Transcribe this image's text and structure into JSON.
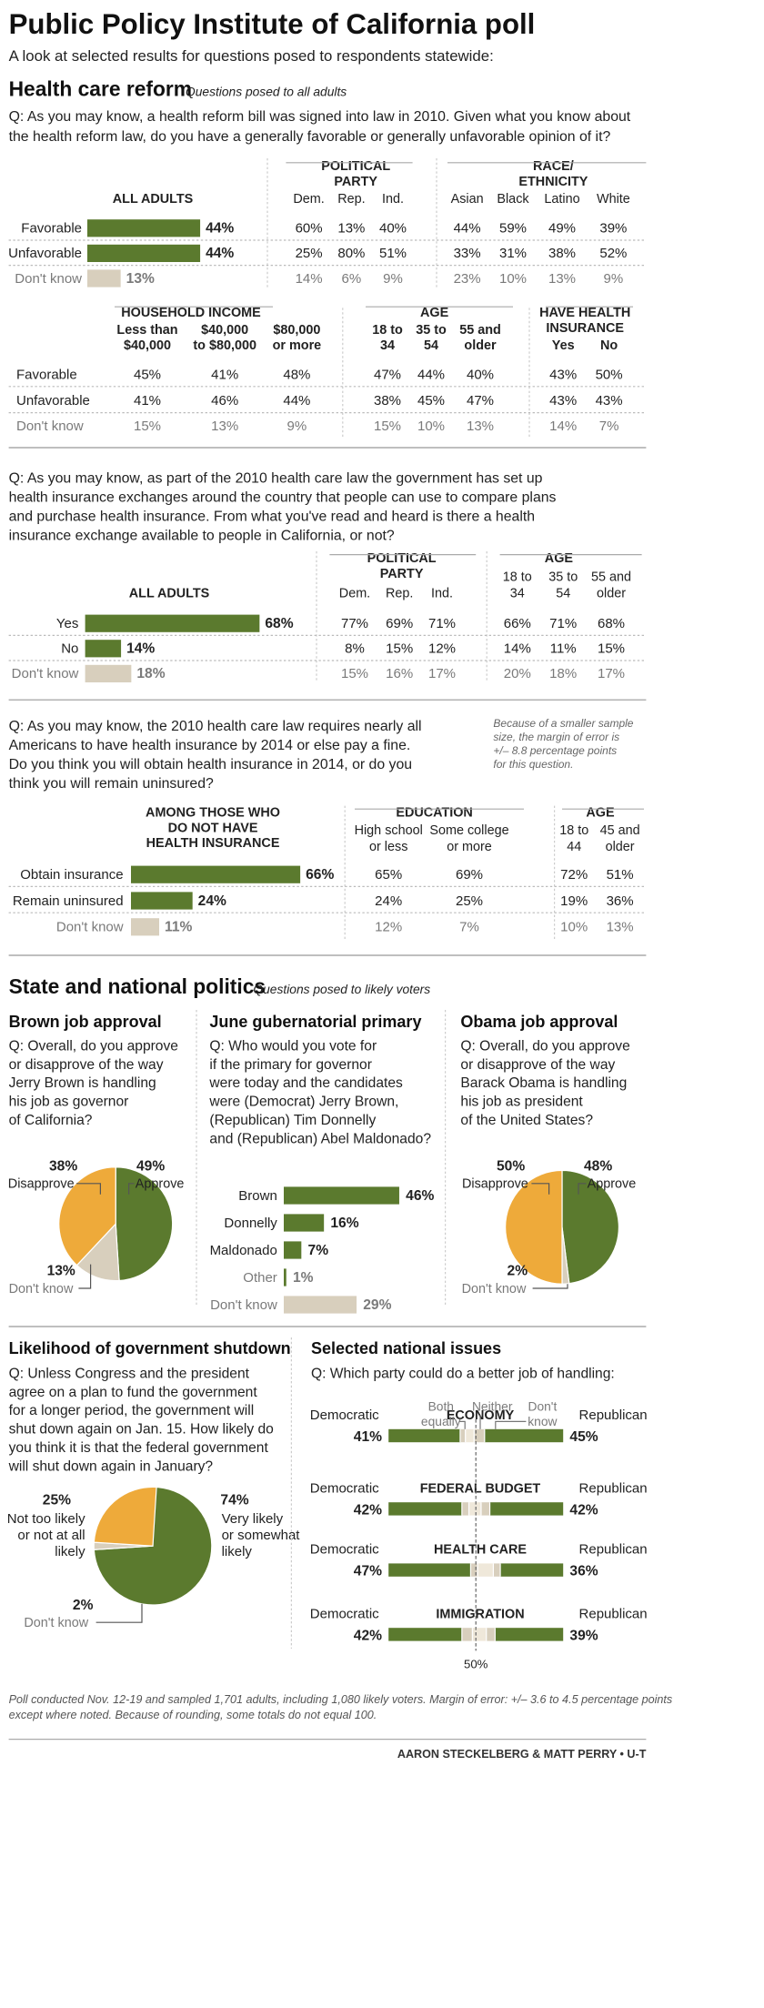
{
  "title": "Public Policy Institute of California poll",
  "subtitle": "A look at selected results for questions posed to respondents statewide:",
  "colors": {
    "green": "#5b7a2e",
    "gold": "#eeaa3a",
    "beige": "#d8cfbd",
    "grey": "#7a7a7a",
    "rule": "#c8c8c8"
  },
  "sections": {
    "health": {
      "title": "Health care reform",
      "note": "Questions posed to all adults"
    },
    "politics": {
      "title": "State and national politics",
      "note": "Questions posed to likely voters"
    }
  },
  "q1": {
    "question_lines": [
      "Q: As you may know, a health reform bill was signed into law in 2010. Given what you know about",
      "the health reform law, do you have a generally favorable or generally unfavorable opinion of it?"
    ],
    "all_adults_label": "ALL ADULTS",
    "group_headers": {
      "party": [
        "POLITICAL",
        "PARTY"
      ],
      "race": [
        "RACE/",
        "ETHNICITY"
      ]
    },
    "party_cols": [
      "Dem.",
      "Rep.",
      "Ind."
    ],
    "race_cols": [
      "Asian",
      "Black",
      "Latino",
      "White"
    ],
    "rows": [
      "Favorable",
      "Unfavorable",
      "Don't know"
    ],
    "party_values": [
      [
        "60%",
        "13%",
        "40%"
      ],
      [
        "25%",
        "80%",
        "51%"
      ],
      [
        "14%",
        "6%",
        "9%"
      ]
    ],
    "race_values": [
      [
        "44%",
        "59%",
        "49%",
        "39%"
      ],
      [
        "33%",
        "31%",
        "38%",
        "52%"
      ],
      [
        "23%",
        "10%",
        "13%",
        "9%"
      ]
    ],
    "income_header": "HOUSEHOLD INCOME",
    "income_cols": [
      [
        "Less than",
        "$40,000"
      ],
      [
        "$40,000",
        "to $80,000"
      ],
      [
        "$80,000",
        "or more"
      ]
    ],
    "income_values": [
      [
        "45%",
        "41%",
        "48%"
      ],
      [
        "41%",
        "46%",
        "44%"
      ],
      [
        "15%",
        "13%",
        "9%"
      ]
    ],
    "age_header": "AGE",
    "age_cols": [
      [
        "18 to",
        "34"
      ],
      [
        "35 to",
        "54"
      ],
      [
        "55 and",
        "older"
      ]
    ],
    "age_values": [
      [
        "47%",
        "44%",
        "40%"
      ],
      [
        "38%",
        "45%",
        "47%"
      ],
      [
        "15%",
        "10%",
        "13%"
      ]
    ],
    "ins_header": [
      "HAVE HEALTH",
      "INSURANCE"
    ],
    "ins_cols": [
      "Yes",
      "No"
    ],
    "ins_values": [
      [
        "43%",
        "50%"
      ],
      [
        "43%",
        "43%"
      ],
      [
        "14%",
        "7%"
      ]
    ]
  },
  "q2": {
    "question_lines": [
      "Q: As you may know, as part of the 2010 health care law the government has set up",
      "health insurance exchanges around the country that people can use to compare plans",
      "and purchase health insurance. From what you've read and heard is there a health",
      "insurance exchange available to people in California, or not?"
    ],
    "all_adults_label": "ALL ADULTS",
    "party_header": [
      "POLITICAL",
      "PARTY"
    ],
    "party_cols": [
      "Dem.",
      "Rep.",
      "Ind."
    ],
    "age_header": "AGE",
    "age_cols": [
      [
        "18 to",
        "34"
      ],
      [
        "35 to",
        "54"
      ],
      [
        "55 and",
        "older"
      ]
    ],
    "rows": [
      "Yes",
      "No",
      "Don't know"
    ],
    "party_values": [
      [
        "77%",
        "69%",
        "71%"
      ],
      [
        "8%",
        "15%",
        "12%"
      ],
      [
        "15%",
        "16%",
        "17%"
      ]
    ],
    "age_values": [
      [
        "66%",
        "71%",
        "68%"
      ],
      [
        "14%",
        "11%",
        "15%"
      ],
      [
        "20%",
        "18%",
        "17%"
      ]
    ]
  },
  "q3": {
    "question_lines": [
      "Q: As you may know, the 2010 health care law requires nearly all",
      "Americans to have health insurance by 2014 or else pay a fine.",
      "Do you think you will obtain health insurance in 2014, or do you",
      "think you will remain uninsured?"
    ],
    "note_lines": [
      "Because of a smaller sample",
      "size, the margin of error is",
      "+/– 8.8 percentage points",
      "for this question."
    ],
    "among_header": [
      "AMONG THOSE WHO",
      "DO NOT HAVE",
      "HEALTH INSURANCE"
    ],
    "edu_header": "EDUCATION",
    "edu_cols": [
      [
        "High school",
        "or less"
      ],
      [
        "Some college",
        "or more"
      ]
    ],
    "age_header": "AGE",
    "age_cols": [
      [
        "18 to",
        "44"
      ],
      [
        "45 and",
        "older"
      ]
    ],
    "rows": [
      "Obtain insurance",
      "Remain uninsured",
      "Don't know"
    ],
    "edu_values": [
      [
        "65%",
        "69%"
      ],
      [
        "24%",
        "25%"
      ],
      [
        "12%",
        "7%"
      ]
    ],
    "age_values": [
      [
        "72%",
        "51%"
      ],
      [
        "19%",
        "36%"
      ],
      [
        "10%",
        "13%"
      ]
    ]
  },
  "brown": {
    "title": "Brown job approval",
    "question_lines": [
      "Q: Overall, do you approve",
      "or disapprove of the way",
      "Jerry Brown is handling",
      "his job as governor",
      "of California?"
    ],
    "labels": {
      "disapprove_pct": "38%",
      "disapprove": "Disapprove",
      "approve_pct": "49%",
      "approve": "Approve",
      "dk_pct": "13%",
      "dk": "Don't know"
    }
  },
  "primary": {
    "title": "June gubernatorial primary",
    "question_lines": [
      "Q: Who would you vote for",
      "if the primary for governor",
      "were today and the candidates",
      "were (Democrat) Jerry Brown,",
      "(Republican) Tim Donnelly",
      "and (Republican) Abel Maldonado?"
    ]
  },
  "obama": {
    "title": "Obama job approval",
    "question_lines": [
      "Q: Overall, do you approve",
      "or disapprove of the way",
      "Barack Obama is handling",
      "his job as president",
      "of the United States?"
    ],
    "labels": {
      "disapprove_pct": "50%",
      "disapprove": "Disapprove",
      "approve_pct": "48%",
      "approve": "Approve",
      "dk_pct": "2%",
      "dk": "Don't know"
    }
  },
  "shutdown": {
    "title": "Likelihood of government shutdown",
    "question_lines": [
      "Q: Unless Congress and the president",
      "agree on a plan to fund the government",
      "for a longer period, the government will",
      "shut down again on Jan. 15. How likely do",
      "you think it is that the federal government",
      "will shut down again in January?"
    ],
    "labels": {
      "not_pct": "25%",
      "not_lines": [
        "Not too likely",
        "or not at all",
        "likely"
      ],
      "very_pct": "74%",
      "very_lines": [
        "Very likely",
        "or somewhat",
        "likely"
      ],
      "dk_pct": "2%",
      "dk": "Don't know"
    }
  },
  "issues": {
    "title": "Selected national issues",
    "question": "Q: Which party could do a better job of handling:",
    "left_label": "Democratic",
    "right_label": "Republican",
    "legend": {
      "both": [
        "Both",
        "equally"
      ],
      "neither": "Neither",
      "dk": [
        "Don't",
        "know"
      ]
    },
    "midline": "50%"
  },
  "footnote_lines": [
    "Poll conducted Nov. 12-19 and sampled 1,701 adults, including 1,080 likely voters. Margin of error: +/– 3.6 to 4.5 percentage points",
    "except where noted. Because of rounding, some totals do not equal 100."
  ],
  "credit": "AARON STECKELBERG & MATT PERRY • U-T",
  "chart_data": [
    {
      "type": "bar",
      "id": "q1_all",
      "categories": [
        "Favorable",
        "Unfavorable",
        "Don't know"
      ],
      "values": [
        44,
        44,
        13
      ]
    },
    {
      "type": "bar",
      "id": "q2_all",
      "categories": [
        "Yes",
        "No",
        "Don't know"
      ],
      "values": [
        68,
        14,
        18
      ]
    },
    {
      "type": "bar",
      "id": "q3_all",
      "categories": [
        "Obtain insurance",
        "Remain uninsured",
        "Don't know"
      ],
      "values": [
        66,
        24,
        11
      ]
    },
    {
      "type": "pie",
      "id": "brown",
      "categories": [
        "Approve",
        "Don't know",
        "Disapprove"
      ],
      "values": [
        49,
        13,
        38
      ]
    },
    {
      "type": "bar",
      "id": "primary",
      "categories": [
        "Brown",
        "Donnelly",
        "Maldonado",
        "Other",
        "Don't know"
      ],
      "values": [
        46,
        16,
        7,
        1,
        29
      ]
    },
    {
      "type": "pie",
      "id": "obama",
      "categories": [
        "Approve",
        "Don't know",
        "Disapprove"
      ],
      "values": [
        48,
        2,
        50
      ]
    },
    {
      "type": "pie",
      "id": "shutdown",
      "categories": [
        "Very likely or somewhat likely",
        "Don't know",
        "Not too likely or not at all likely"
      ],
      "values": [
        74,
        2,
        25
      ]
    },
    {
      "type": "bar",
      "id": "issues",
      "stacked": true,
      "categories": [
        "ECONOMY",
        "FEDERAL BUDGET",
        "HEALTH CARE",
        "IMMIGRATION"
      ],
      "series": [
        {
          "name": "Democratic",
          "values": [
            41,
            42,
            47,
            42
          ]
        },
        {
          "name": "Both equally",
          "values": [
            3,
            4,
            4,
            6
          ]
        },
        {
          "name": "Neither",
          "values": [
            5,
            7,
            9,
            8
          ]
        },
        {
          "name": "Don't know",
          "values": [
            6,
            5,
            4,
            5
          ]
        },
        {
          "name": "Republican",
          "values": [
            45,
            42,
            36,
            39
          ]
        }
      ]
    }
  ]
}
